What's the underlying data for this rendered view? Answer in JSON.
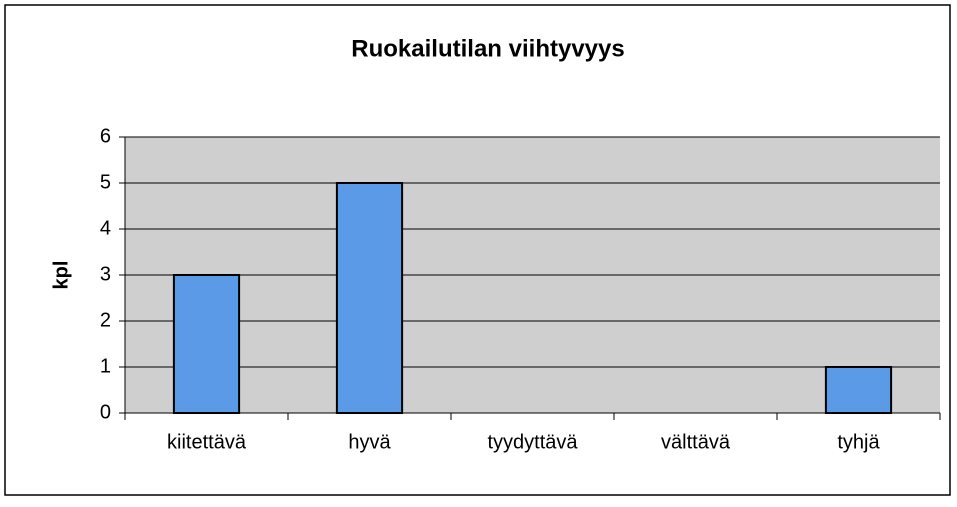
{
  "chart_data": {
    "type": "bar",
    "title": "Ruokailutilan viihtyvyys",
    "y_label": "kpl",
    "categories": [
      "kiitettävä",
      "hyvä",
      "tyydyttävä",
      "välttävä",
      "tyhjä"
    ],
    "values": [
      3,
      5,
      0,
      0,
      1
    ],
    "color": "#5a9ae6",
    "ylim": [
      0,
      6
    ],
    "yticks": [
      0,
      1,
      2,
      3,
      4,
      5,
      6
    ],
    "grid": true
  }
}
